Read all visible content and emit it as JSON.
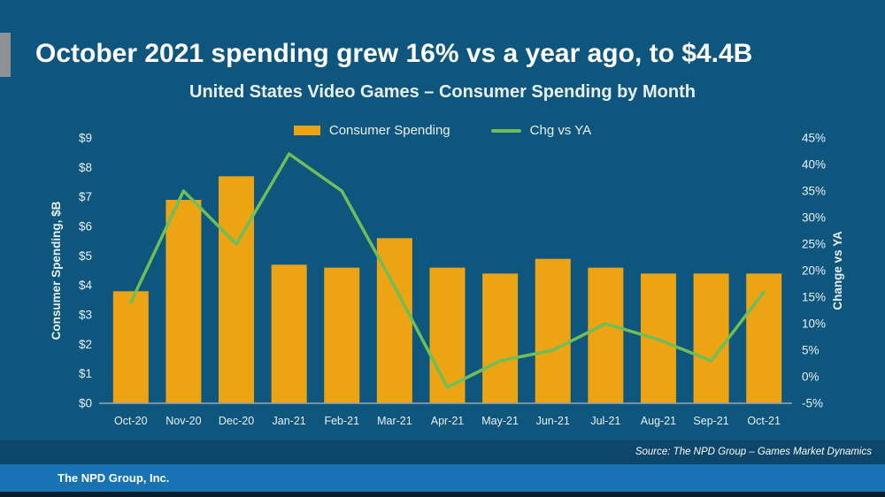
{
  "slide": {
    "title": "October 2021 spending grew 16% vs a year ago, to $4.4B",
    "subtitle": "United States Video Games – Consumer Spending by Month",
    "source": "Source: The NPD Group – Games Market Dynamics",
    "footer": "The NPD Group, Inc."
  },
  "legend": {
    "bar_label": "Consumer Spending",
    "line_label": "Chg vs YA"
  },
  "colors": {
    "background": "#0E567E",
    "bar": "#ECA413",
    "line": "#6FBE5A",
    "accent_bar": "#8E9296",
    "axis_line": "#9BA5AD",
    "source_band": "#0C466A",
    "footer_band": "#1873B4",
    "bottom_strip": "#081E2D",
    "text": "#FFFFFF"
  },
  "chart_data": {
    "type": "bar",
    "subtype": "bar-line-combo",
    "title": "United States Video Games – Consumer Spending by Month",
    "categories": [
      "Oct-20",
      "Nov-20",
      "Dec-20",
      "Jan-21",
      "Feb-21",
      "Mar-21",
      "Apr-21",
      "May-21",
      "Jun-21",
      "Jul-21",
      "Aug-21",
      "Sep-21",
      "Oct-21"
    ],
    "series": [
      {
        "name": "Consumer Spending",
        "type": "bar",
        "axis": "left",
        "unit": "$B",
        "color": "#ECA413",
        "values": [
          3.8,
          6.9,
          7.7,
          4.7,
          4.6,
          5.6,
          4.6,
          4.4,
          4.9,
          4.6,
          4.4,
          4.4,
          4.4
        ]
      },
      {
        "name": "Chg vs YA",
        "type": "line",
        "axis": "right",
        "unit": "%",
        "color": "#6FBE5A",
        "values": [
          14,
          35,
          25,
          42,
          35,
          17,
          -2,
          3,
          5,
          10,
          7,
          3,
          16
        ]
      }
    ],
    "left_axis": {
      "title": "Consumer Spending, $B",
      "min": 0,
      "max": 9,
      "step": 1,
      "ticks": [
        "$9",
        "$8",
        "$7",
        "$6",
        "$5",
        "$4",
        "$3",
        "$2",
        "$1",
        "$0"
      ]
    },
    "right_axis": {
      "title": "Change vs YA",
      "min": -5,
      "max": 45,
      "step": 5,
      "ticks": [
        "45%",
        "40%",
        "35%",
        "30%",
        "25%",
        "20%",
        "15%",
        "10%",
        "5%",
        "0%",
        "-5%"
      ]
    },
    "grid": false,
    "legend_position": "top"
  }
}
